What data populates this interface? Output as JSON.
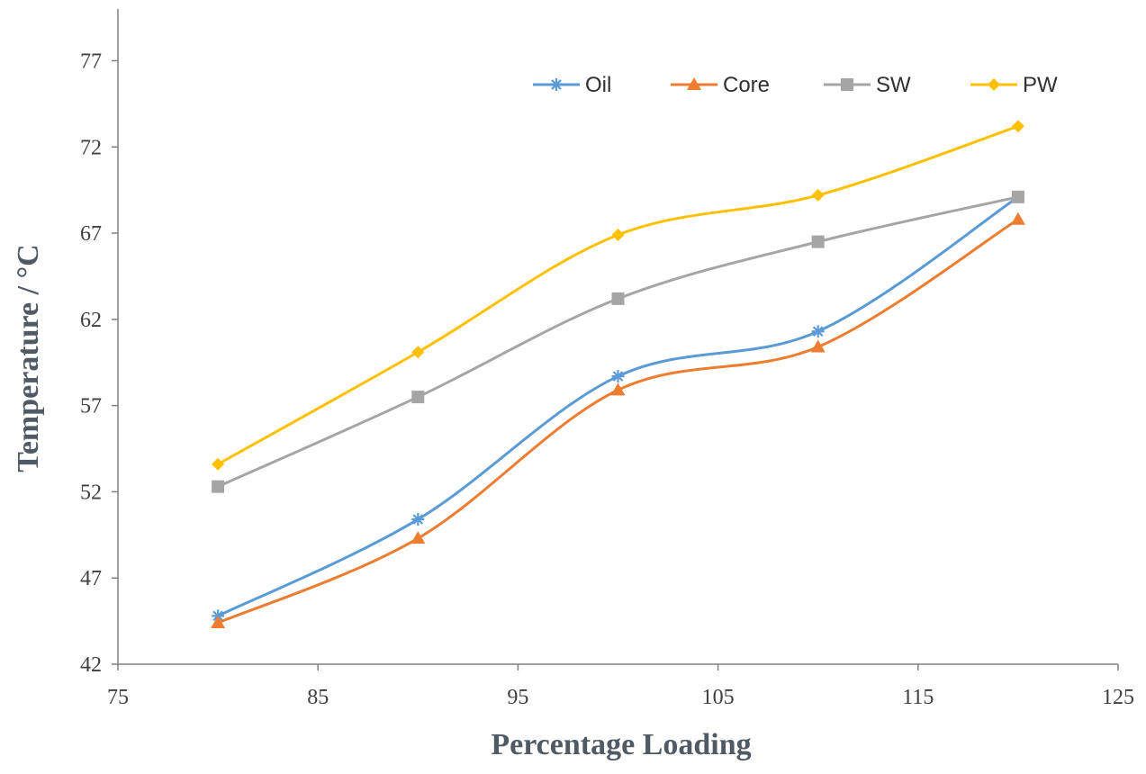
{
  "chart_data": {
    "type": "line",
    "title": "",
    "xlabel": "Percentage Loading",
    "ylabel": "Temperature / °C",
    "xlim": [
      75,
      125
    ],
    "ylim": [
      42,
      80
    ],
    "x_ticks": [
      75,
      85,
      95,
      105,
      115,
      125
    ],
    "y_ticks": [
      42,
      47,
      52,
      57,
      62,
      67,
      72,
      77
    ],
    "x": [
      80,
      90,
      100,
      110,
      120
    ],
    "legend_position": "top-right",
    "grid": false,
    "series": [
      {
        "name": "Oil",
        "values": [
          44.8,
          50.4,
          58.7,
          61.3,
          69.1
        ],
        "color": "#5b9bd5",
        "marker": "star"
      },
      {
        "name": "Core",
        "values": [
          44.4,
          49.3,
          57.9,
          60.4,
          67.8
        ],
        "color": "#ed7d31",
        "marker": "triangle"
      },
      {
        "name": "SW",
        "values": [
          52.3,
          57.5,
          63.2,
          66.5,
          69.1
        ],
        "color": "#a5a5a5",
        "marker": "square"
      },
      {
        "name": "PW",
        "values": [
          53.6,
          60.1,
          66.9,
          69.2,
          73.2
        ],
        "color": "#ffc000",
        "marker": "diamond"
      }
    ]
  }
}
